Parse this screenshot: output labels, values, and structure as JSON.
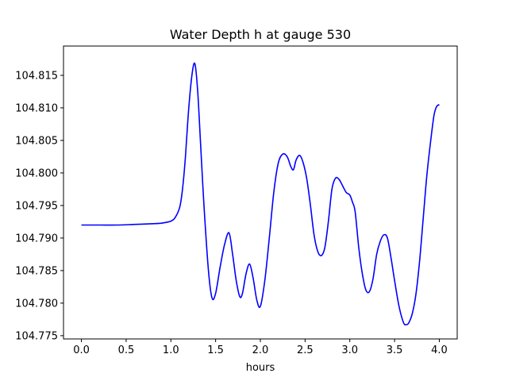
{
  "chart_data": {
    "type": "line",
    "title": "Water Depth h at gauge 530",
    "xlabel": "hours",
    "ylabel": "",
    "xlim": [
      -0.2,
      4.2
    ],
    "ylim": [
      104.7745,
      104.8195
    ],
    "xticks": [
      0.0,
      0.5,
      1.0,
      1.5,
      2.0,
      2.5,
      3.0,
      3.5,
      4.0
    ],
    "xtick_labels": [
      "0.0",
      "0.5",
      "1.0",
      "1.5",
      "2.0",
      "2.5",
      "3.0",
      "3.5",
      "4.0"
    ],
    "yticks": [
      104.775,
      104.78,
      104.785,
      104.79,
      104.795,
      104.8,
      104.805,
      104.81,
      104.815
    ],
    "ytick_labels": [
      "104.775",
      "104.780",
      "104.785",
      "104.790",
      "104.795",
      "104.800",
      "104.805",
      "104.810",
      "104.815"
    ],
    "grid": false,
    "series": [
      {
        "color": "#0000ff",
        "x": [
          0.0,
          0.2,
          0.4,
          0.6,
          0.8,
          0.9,
          1.0,
          1.05,
          1.1,
          1.13,
          1.16,
          1.2,
          1.24,
          1.27,
          1.3,
          1.33,
          1.37,
          1.42,
          1.46,
          1.5,
          1.55,
          1.6,
          1.65,
          1.69,
          1.73,
          1.77,
          1.8,
          1.84,
          1.88,
          1.92,
          1.96,
          2.0,
          2.05,
          2.1,
          2.15,
          2.2,
          2.25,
          2.3,
          2.34,
          2.37,
          2.4,
          2.44,
          2.48,
          2.52,
          2.56,
          2.6,
          2.64,
          2.68,
          2.72,
          2.76,
          2.8,
          2.84,
          2.88,
          2.92,
          2.96,
          3.0,
          3.03,
          3.06,
          3.1,
          3.14,
          3.18,
          3.22,
          3.26,
          3.3,
          3.34,
          3.38,
          3.42,
          3.46,
          3.5,
          3.55,
          3.6,
          3.63,
          3.66,
          3.7,
          3.74,
          3.78,
          3.82,
          3.86,
          3.9,
          3.94,
          3.97,
          4.0
        ],
        "y": [
          104.792,
          104.792,
          104.792,
          104.7921,
          104.7922,
          104.7923,
          104.7926,
          104.7932,
          104.7948,
          104.7975,
          104.802,
          104.81,
          104.8155,
          104.8167,
          104.8125,
          104.805,
          104.795,
          104.785,
          104.7808,
          104.7815,
          104.7855,
          104.789,
          104.7908,
          104.7875,
          104.7835,
          104.781,
          104.7815,
          104.7845,
          104.786,
          104.7838,
          104.7805,
          104.7795,
          104.7835,
          104.79,
          104.797,
          104.8015,
          104.8029,
          104.8025,
          104.801,
          104.8005,
          104.802,
          104.8027,
          104.8015,
          104.799,
          104.795,
          104.7905,
          104.788,
          104.7873,
          104.7885,
          104.7925,
          104.7975,
          104.7992,
          104.799,
          104.798,
          104.797,
          104.7966,
          104.7955,
          104.794,
          104.7885,
          104.7845,
          104.782,
          104.7818,
          104.7838,
          104.7875,
          104.7895,
          104.7905,
          104.79,
          104.787,
          104.7835,
          104.7795,
          104.777,
          104.7767,
          104.777,
          104.7785,
          104.7815,
          104.7865,
          104.793,
          104.7995,
          104.8045,
          104.8088,
          104.8102,
          104.8105
        ]
      }
    ]
  }
}
